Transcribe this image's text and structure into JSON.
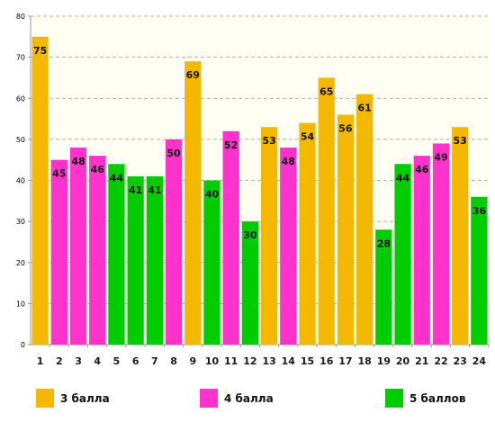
{
  "chart_data": {
    "type": "bar",
    "categories": [
      "1",
      "2",
      "3",
      "4",
      "5",
      "6",
      "7",
      "8",
      "9",
      "10",
      "11",
      "12",
      "13",
      "14",
      "15",
      "16",
      "17",
      "18",
      "19",
      "20",
      "21",
      "22",
      "23",
      "24"
    ],
    "values": [
      75,
      45,
      48,
      46,
      44,
      41,
      41,
      50,
      69,
      40,
      52,
      30,
      53,
      48,
      54,
      65,
      56,
      61,
      28,
      44,
      46,
      49,
      53,
      36
    ],
    "groups": [
      "3 балла",
      "4 балла",
      "4 балла",
      "4 балла",
      "5 баллов",
      "5 баллов",
      "5 баллов",
      "4 балла",
      "3 балла",
      "5 баллов",
      "4 балла",
      "5 баллов",
      "3 балла",
      "4 балла",
      "3 балла",
      "3 балла",
      "3 балла",
      "3 балла",
      "5 баллов",
      "5 баллов",
      "4 балла",
      "4 балла",
      "3 балла",
      "5 баллов"
    ],
    "yticks": [
      0,
      10,
      20,
      30,
      40,
      50,
      60,
      70,
      80
    ],
    "ylim": [
      0,
      80
    ],
    "grid": true,
    "legend": [
      {
        "name": "3 балла",
        "color": "#F5B800"
      },
      {
        "name": "4 балла",
        "color": "#FF33CC"
      },
      {
        "name": "5 баллов",
        "color": "#00CC00"
      }
    ],
    "legend_position": "bottom"
  }
}
